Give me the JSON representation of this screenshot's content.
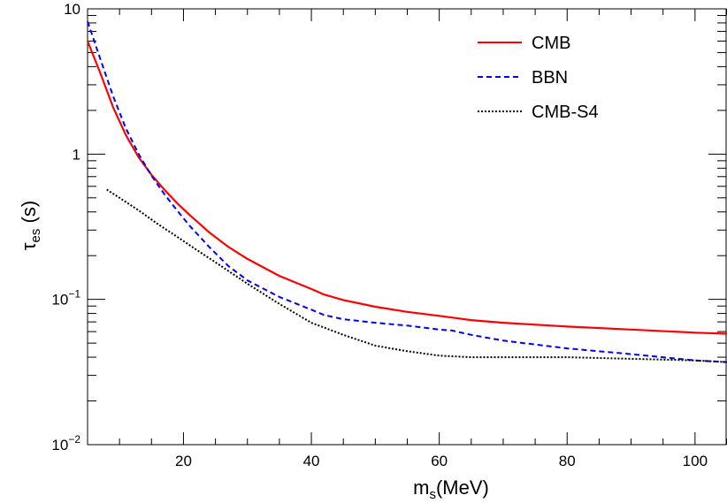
{
  "chart_data": {
    "type": "line",
    "title": "",
    "xlabel_main": "m",
    "xlabel_sub": "s",
    "xlabel_unit": "(MeV)",
    "ylabel_main": "τ",
    "ylabel_sub": "es",
    "ylabel_unit": " (s)",
    "xlim": [
      5,
      105
    ],
    "ylim": [
      0.01,
      10
    ],
    "yscale": "log",
    "x_ticks": [
      "20",
      "40",
      "60",
      "80",
      "100"
    ],
    "x_tick_values": [
      20,
      40,
      60,
      80,
      100
    ],
    "y_ticks": [
      {
        "value": 10,
        "base": "10",
        "exp": ""
      },
      {
        "value": 1,
        "base": "1",
        "exp": ""
      },
      {
        "value": 0.1,
        "base": "10",
        "exp": "−1"
      },
      {
        "value": 0.01,
        "base": "10",
        "exp": "−2"
      }
    ],
    "grid": false,
    "legend_position": "top-right",
    "series": [
      {
        "name": "CMB",
        "color": "#ff0000",
        "dash": "solid",
        "x": [
          5,
          7,
          9,
          11,
          13,
          15,
          17,
          19,
          21,
          24,
          27,
          30,
          35,
          40,
          42,
          45,
          50,
          55,
          60,
          65,
          70,
          80,
          90,
          100,
          105
        ],
        "y": [
          6.0,
          3.6,
          2.1,
          1.35,
          0.95,
          0.72,
          0.57,
          0.46,
          0.38,
          0.29,
          0.23,
          0.19,
          0.145,
          0.118,
          0.108,
          0.099,
          0.089,
          0.082,
          0.077,
          0.072,
          0.069,
          0.065,
          0.062,
          0.059,
          0.058
        ]
      },
      {
        "name": "BBN",
        "color": "#0000ff",
        "dash": "dashed",
        "x": [
          5,
          7,
          9,
          11,
          13,
          15,
          17,
          19,
          21,
          24,
          27,
          30,
          35,
          40,
          42,
          45,
          50,
          55,
          60,
          62,
          65,
          70,
          80,
          90,
          100,
          105
        ],
        "y": [
          8.2,
          4.5,
          2.5,
          1.5,
          1.0,
          0.71,
          0.53,
          0.41,
          0.32,
          0.23,
          0.17,
          0.135,
          0.104,
          0.085,
          0.078,
          0.073,
          0.069,
          0.066,
          0.062,
          0.061,
          0.057,
          0.052,
          0.046,
          0.042,
          0.038,
          0.037
        ]
      },
      {
        "name": "CMB-S4",
        "color": "#000000",
        "dash": "dotted",
        "x": [
          8,
          10,
          13,
          16,
          19,
          22,
          25,
          30,
          35,
          40,
          45,
          50,
          55,
          60,
          65,
          70,
          80,
          90,
          100,
          105
        ],
        "y": [
          0.57,
          0.5,
          0.41,
          0.33,
          0.27,
          0.22,
          0.18,
          0.128,
          0.093,
          0.069,
          0.057,
          0.048,
          0.044,
          0.041,
          0.04,
          0.04,
          0.04,
          0.039,
          0.038,
          0.037
        ]
      }
    ]
  }
}
